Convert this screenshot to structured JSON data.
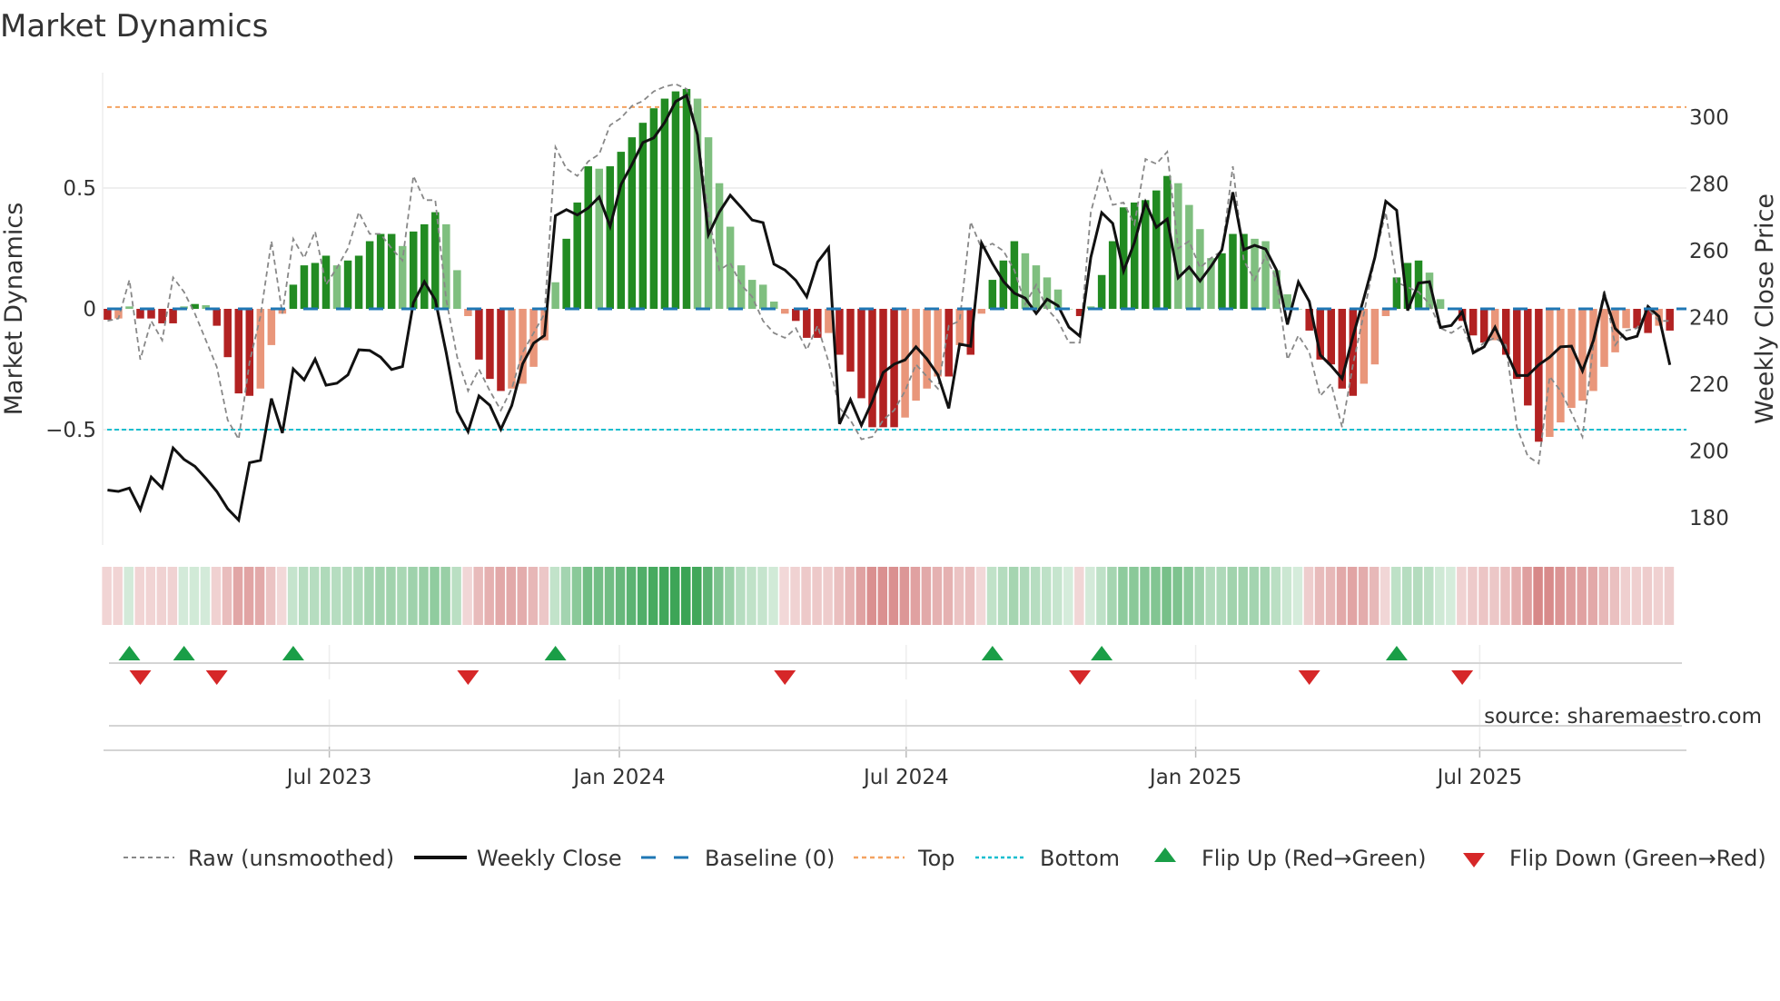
{
  "title": "Market Dynamics",
  "source": "source: sharemaestro.com",
  "legend": {
    "raw": "Raw (unsmoothed)",
    "close": "Weekly Close",
    "baseline": "Baseline (0)",
    "top": "Top",
    "bottom": "Bottom",
    "flip_up": "Flip Up (Red→Green)",
    "flip_down": "Flip Down (Green→Red)"
  },
  "colors": {
    "strong_green": "#228b22",
    "weak_green": "#7fbf7f",
    "strong_red": "#b22222",
    "weak_red": "#e9967a",
    "raw": "#888888",
    "close": "#111111",
    "baseline": "#1f77b4",
    "top": "#f4a261",
    "bottom": "#17becf",
    "flip_up": "#1a9e47",
    "flip_down": "#d62728"
  },
  "chart_data": {
    "type": "bar",
    "title": "Market Dynamics",
    "ylabel": "Market Dynamics",
    "y2label": "Weekly Close Price",
    "frequency": "weekly",
    "ylim": [
      -0.98,
      1.0
    ],
    "y2lim": [
      172,
      312
    ],
    "yticks": [
      {
        "v": 0.5,
        "label": "0.5"
      },
      {
        "v": 0,
        "label": "0"
      },
      {
        "v": -0.5,
        "label": "−0.5"
      }
    ],
    "y2ticks": [
      {
        "v": 300,
        "label": "300"
      },
      {
        "v": 280,
        "label": "280"
      },
      {
        "v": 260,
        "label": "260"
      },
      {
        "v": 240,
        "label": "240"
      },
      {
        "v": 220,
        "label": "220"
      },
      {
        "v": 200,
        "label": "200"
      },
      {
        "v": 180,
        "label": "180"
      }
    ],
    "xticks": [
      {
        "week": 20.3,
        "label": "Jul 2023"
      },
      {
        "week": 46.85,
        "label": "Jan 2024"
      },
      {
        "week": 73.1,
        "label": "Jul 2024"
      },
      {
        "week": 99.6,
        "label": "Jan 2025"
      },
      {
        "week": 125.6,
        "label": "Jul 2025"
      }
    ],
    "top_level": 0.835,
    "bottom_level": -0.5,
    "baseline": 0,
    "momentum": [
      -0.045,
      -0.04,
      0.01,
      -0.04,
      -0.04,
      -0.06,
      -0.06,
      0.01,
      0.02,
      0.015,
      -0.07,
      -0.2,
      -0.35,
      -0.36,
      -0.33,
      -0.15,
      -0.02,
      0.1,
      0.18,
      0.19,
      0.22,
      0.18,
      0.2,
      0.22,
      0.28,
      0.31,
      0.31,
      0.26,
      0.32,
      0.35,
      0.4,
      0.35,
      0.16,
      -0.03,
      -0.21,
      -0.29,
      -0.34,
      -0.33,
      -0.31,
      -0.24,
      -0.13,
      0.11,
      0.29,
      0.44,
      0.59,
      0.58,
      0.59,
      0.65,
      0.71,
      0.77,
      0.83,
      0.87,
      0.9,
      0.91,
      0.87,
      0.71,
      0.52,
      0.34,
      0.18,
      0.12,
      0.1,
      0.03,
      -0.02,
      -0.05,
      -0.12,
      -0.12,
      -0.1,
      -0.19,
      -0.26,
      -0.37,
      -0.49,
      -0.49,
      -0.49,
      -0.45,
      -0.38,
      -0.33,
      -0.28,
      -0.28,
      -0.15,
      -0.19,
      -0.02,
      0.12,
      0.2,
      0.28,
      0.23,
      0.18,
      0.13,
      0.08,
      0.0,
      -0.03,
      0.01,
      0.14,
      0.28,
      0.42,
      0.44,
      0.45,
      0.49,
      0.55,
      0.52,
      0.43,
      0.33,
      0.21,
      0.23,
      0.31,
      0.31,
      0.29,
      0.28,
      0.16,
      0.06,
      0.0,
      -0.09,
      -0.21,
      -0.23,
      -0.33,
      -0.36,
      -0.31,
      -0.23,
      -0.03,
      0.13,
      0.19,
      0.2,
      0.15,
      0.04,
      0.0,
      -0.05,
      -0.11,
      -0.14,
      -0.13,
      -0.19,
      -0.29,
      -0.4,
      -0.55,
      -0.53,
      -0.47,
      -0.41,
      -0.38,
      -0.34,
      -0.24,
      -0.18,
      -0.08,
      -0.08,
      -0.1,
      -0.07,
      -0.09
    ],
    "raw": [
      -0.05,
      -0.04,
      0.12,
      -0.21,
      -0.05,
      -0.13,
      0.13,
      0.07,
      -0.02,
      -0.13,
      -0.24,
      -0.46,
      -0.54,
      -0.22,
      -0.03,
      0.28,
      -0.02,
      0.29,
      0.21,
      0.32,
      0.1,
      0.17,
      0.25,
      0.4,
      0.31,
      0.31,
      0.25,
      0.2,
      0.55,
      0.45,
      0.45,
      0.04,
      -0.2,
      -0.34,
      -0.25,
      -0.34,
      -0.42,
      -0.33,
      -0.18,
      -0.1,
      -0.02,
      0.67,
      0.58,
      0.55,
      0.61,
      0.64,
      0.76,
      0.79,
      0.84,
      0.86,
      0.9,
      0.92,
      0.93,
      0.91,
      0.73,
      0.39,
      0.16,
      0.19,
      0.1,
      0.05,
      -0.05,
      -0.1,
      -0.12,
      -0.08,
      -0.17,
      -0.07,
      -0.22,
      -0.41,
      -0.46,
      -0.54,
      -0.53,
      -0.46,
      -0.42,
      -0.34,
      -0.23,
      -0.28,
      -0.33,
      -0.07,
      -0.05,
      0.36,
      0.25,
      0.27,
      0.24,
      0.16,
      0.02,
      0.1,
      0.0,
      -0.05,
      -0.14,
      -0.14,
      0.4,
      0.57,
      0.43,
      0.44,
      0.35,
      0.62,
      0.6,
      0.65,
      0.25,
      0.28,
      0.17,
      0.21,
      0.24,
      0.59,
      0.2,
      0.12,
      0.22,
      0.12,
      -0.21,
      -0.11,
      -0.18,
      -0.36,
      -0.31,
      -0.49,
      -0.23,
      -0.02,
      0.21,
      0.4,
      0.11,
      0.09,
      0.07,
      0.02,
      -0.08,
      -0.1,
      -0.07,
      -0.18,
      -0.14,
      -0.12,
      -0.15,
      -0.49,
      -0.61,
      -0.64,
      -0.28,
      -0.34,
      -0.43,
      -0.53,
      -0.15,
      0.08,
      -0.15,
      -0.09,
      -0.08,
      0.0,
      -0.05,
      -0.05
    ],
    "close": [
      188.3,
      187.9,
      188.9,
      182.4,
      192.2,
      188.9,
      200.9,
      197.5,
      195.4,
      191.8,
      187.9,
      182.7,
      179.3,
      196.5,
      197.2,
      215.7,
      205.4,
      224.6,
      221.3,
      227.5,
      219.7,
      220.3,
      222.8,
      230.3,
      230.1,
      228.1,
      224.4,
      225.3,
      244.4,
      250.7,
      245.3,
      229.5,
      211.8,
      205.8,
      216.5,
      213.7,
      206.5,
      213.6,
      226.1,
      232.3,
      234.6,
      270.5,
      272.3,
      270.7,
      272.8,
      276.1,
      267.3,
      279.8,
      285.8,
      292.4,
      293.8,
      298.4,
      304.7,
      306.5,
      294.7,
      264.8,
      271.6,
      276.6,
      273.0,
      269.2,
      268.4,
      256.0,
      254.2,
      251.1,
      246.2,
      256.6,
      260.9,
      208.1,
      215.4,
      207.7,
      214.9,
      223.5,
      226.0,
      227.3,
      231.2,
      227.6,
      222.8,
      212.8,
      232.0,
      231.4,
      262.3,
      256.2,
      250.8,
      247.3,
      245.8,
      241.2,
      245.5,
      243.5,
      237.1,
      234.4,
      258.0,
      271.4,
      268.2,
      253.9,
      262.5,
      274.5,
      267.0,
      269.5,
      251.9,
      255.1,
      250.9,
      255.3,
      260.3,
      277.5,
      260.3,
      261.6,
      260.5,
      254.2,
      237.9,
      250.6,
      244.8,
      228.8,
      225.5,
      221.7,
      234.4,
      245.8,
      258.0,
      274.8,
      272.1,
      242.1,
      250.3,
      250.7,
      237.0,
      237.6,
      241.7,
      229.4,
      231.2,
      237.1,
      229.9,
      222.6,
      222.6,
      225.8,
      228.1,
      231.2,
      231.4,
      224.0,
      233.1,
      246.7,
      236.7,
      233.5,
      234.4,
      243.3,
      240.3,
      225.8
    ],
    "flip_up_weeks": [
      2,
      7,
      17,
      41,
      81,
      91,
      118
    ],
    "flip_down_weeks": [
      3,
      10,
      33,
      62,
      89,
      110,
      124
    ]
  }
}
